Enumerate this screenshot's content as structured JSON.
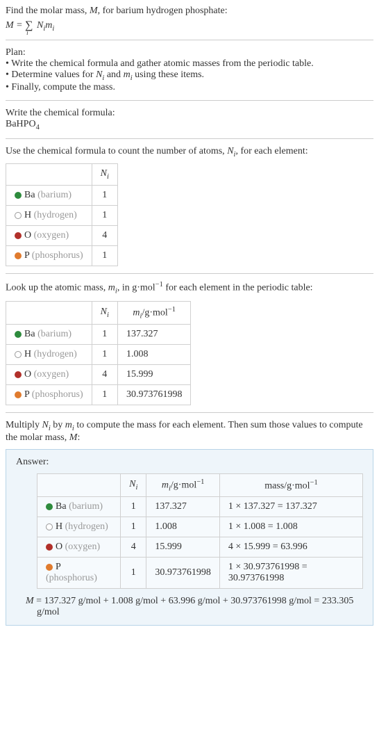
{
  "intro": {
    "line1_pre": "Find the molar mass, ",
    "line1_var": "M",
    "line1_post": ", for barium hydrogen phosphate:",
    "eq_lhs": "M",
    "eq_sum": "∑",
    "eq_sub": "i",
    "eq_N": "N",
    "eq_i1": "i",
    "eq_m": "m",
    "eq_i2": "i"
  },
  "plan": {
    "heading": "Plan:",
    "b1": "• Write the chemical formula and gather atomic masses from the periodic table.",
    "b2_pre": "• Determine values for ",
    "b2_N": "N",
    "b2_i1": "i",
    "b2_mid": " and ",
    "b2_m": "m",
    "b2_i2": "i",
    "b2_post": " using these items.",
    "b3": "• Finally, compute the mass."
  },
  "chem": {
    "heading": "Write the chemical formula:",
    "f_pre": "BaHPO",
    "f_sub": "4"
  },
  "count": {
    "heading_pre": "Use the chemical formula to count the number of atoms, ",
    "heading_N": "N",
    "heading_i": "i",
    "heading_post": ", for each element:",
    "hdr_N": "N",
    "hdr_i": "i"
  },
  "lookup": {
    "heading_pre": "Look up the atomic mass, ",
    "heading_m": "m",
    "heading_i": "i",
    "heading_mid": ", in g·mol",
    "heading_sup": "−1",
    "heading_post": " for each element in the periodic table:",
    "hdr_N": "N",
    "hdr_Ni": "i",
    "hdr_m": "m",
    "hdr_mi": "i",
    "hdr_unit_pre": "/g·mol",
    "hdr_unit_sup": "−1"
  },
  "multiply": {
    "pre": "Multiply ",
    "N": "N",
    "Ni": "i",
    "mid": " by ",
    "m": "m",
    "mi": "i",
    "post1": " to compute the mass for each element. Then sum those values to compute the molar mass, ",
    "M": "M",
    "post2": ":"
  },
  "answer": {
    "label": "Answer:",
    "hdr_N": "N",
    "hdr_Ni": "i",
    "hdr_m": "m",
    "hdr_mi": "i",
    "hdr_munit_pre": "/g·mol",
    "hdr_munit_sup": "−1",
    "hdr_mass_pre": "mass/g·mol",
    "hdr_mass_sup": "−1",
    "molar_M": "M",
    "molar_eq": " = 137.327 g/mol + 1.008 g/mol + 63.996 g/mol + 30.973761998 g/mol = 233.305 g/mol"
  },
  "elements": [
    {
      "sym": "Ba",
      "name": "(barium)",
      "color": "#2e8b3d",
      "hollow": false,
      "N": "1",
      "m": "137.327",
      "mass": "1 × 137.327 = 137.327"
    },
    {
      "sym": "H",
      "name": "(hydrogen)",
      "color": "#ffffff",
      "hollow": true,
      "N": "1",
      "m": "1.008",
      "mass": "1 × 1.008 = 1.008"
    },
    {
      "sym": "O",
      "name": "(oxygen)",
      "color": "#b1302a",
      "hollow": false,
      "N": "4",
      "m": "15.999",
      "mass": "4 × 15.999 = 63.996"
    },
    {
      "sym": "P",
      "name": "(phosphorus)",
      "color": "#e07b2e",
      "hollow": false,
      "N": "1",
      "m": "30.973761998",
      "mass": "1 × 30.973761998 = 30.973761998"
    }
  ]
}
